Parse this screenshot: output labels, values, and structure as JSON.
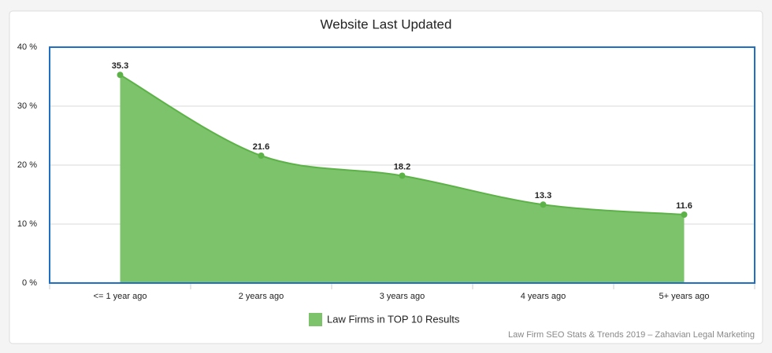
{
  "chart_data": {
    "type": "area",
    "title": "Website Last Updated",
    "categories": [
      "<= 1 year ago",
      "2 years ago",
      "3 years ago",
      "4 years ago",
      "5+ years ago"
    ],
    "series": [
      {
        "name": "Law Firms in TOP 10 Results",
        "color": "#7dc36b",
        "values": [
          35.3,
          21.6,
          18.2,
          13.3,
          11.6
        ]
      }
    ],
    "ylim": [
      0,
      40
    ],
    "yticks": [
      {
        "value": 0,
        "label": "0 %"
      },
      {
        "value": 10,
        "label": "10 %"
      },
      {
        "value": 20,
        "label": "20 %"
      },
      {
        "value": 30,
        "label": "30 %"
      },
      {
        "value": 40,
        "label": "40 %"
      }
    ],
    "grid": true,
    "smooth": true,
    "legend": "bottom",
    "credit": "Law Firm SEO Stats & Trends 2019 – Zahavian Legal Marketing"
  }
}
